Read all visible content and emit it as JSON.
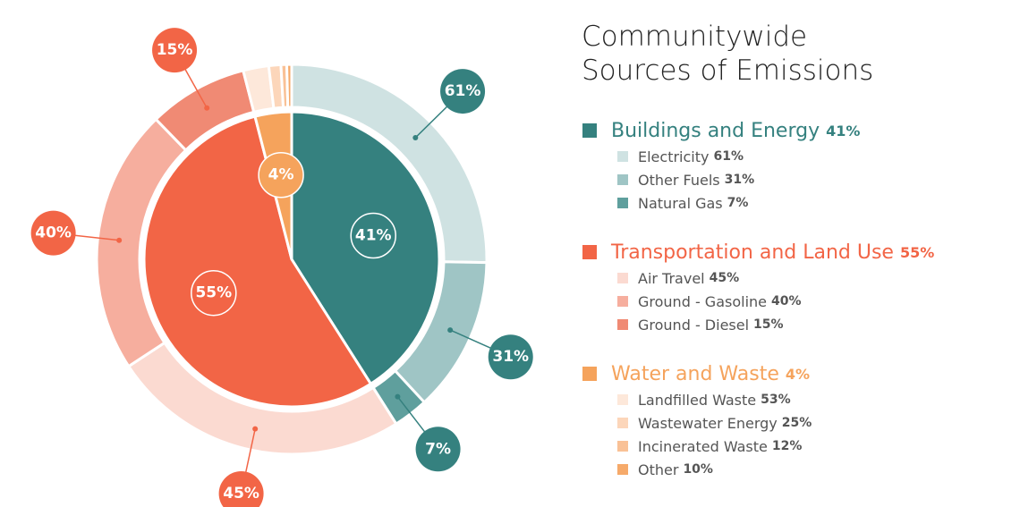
{
  "chart_data": {
    "type": "sunburst",
    "title": "Communitywide Sources of Emissions",
    "groups": [
      {
        "name": "Buildings and Energy",
        "value": 41,
        "value_label": "41%",
        "color": "#35817f",
        "subcategories": [
          {
            "name": "Electricity",
            "value": 61,
            "value_label": "61%",
            "color": "#cfe2e2"
          },
          {
            "name": "Other Fuels",
            "value": 31,
            "value_label": "31%",
            "color": "#9fc5c5"
          },
          {
            "name": "Natural Gas",
            "value": 7,
            "value_label": "7%",
            "color": "#5f9f9d"
          }
        ]
      },
      {
        "name": "Transportation and Land Use",
        "value": 55,
        "value_label": "55%",
        "color": "#f26546",
        "subcategories": [
          {
            "name": "Air Travel",
            "value": 45,
            "value_label": "45%",
            "color": "#fbdad1"
          },
          {
            "name": "Ground - Gasoline",
            "value": 40,
            "value_label": "40%",
            "color": "#f6ae9e"
          },
          {
            "name": "Ground - Diesel",
            "value": 15,
            "value_label": "15%",
            "color": "#f08a74"
          }
        ]
      },
      {
        "name": "Water and Waste",
        "value": 4,
        "value_label": "4%",
        "color": "#f5a35c",
        "subcategories": [
          {
            "name": "Landfilled Waste",
            "value": 53,
            "value_label": "53%",
            "color": "#fde8da"
          },
          {
            "name": "Wastewater Energy",
            "value": 25,
            "value_label": "25%",
            "color": "#fcd6ba"
          },
          {
            "name": "Incinerated Waste",
            "value": 12,
            "value_label": "12%",
            "color": "#f9c196"
          },
          {
            "name": "Other",
            "value": 10,
            "value_label": "10%",
            "color": "#f6aa6a"
          }
        ]
      }
    ]
  }
}
